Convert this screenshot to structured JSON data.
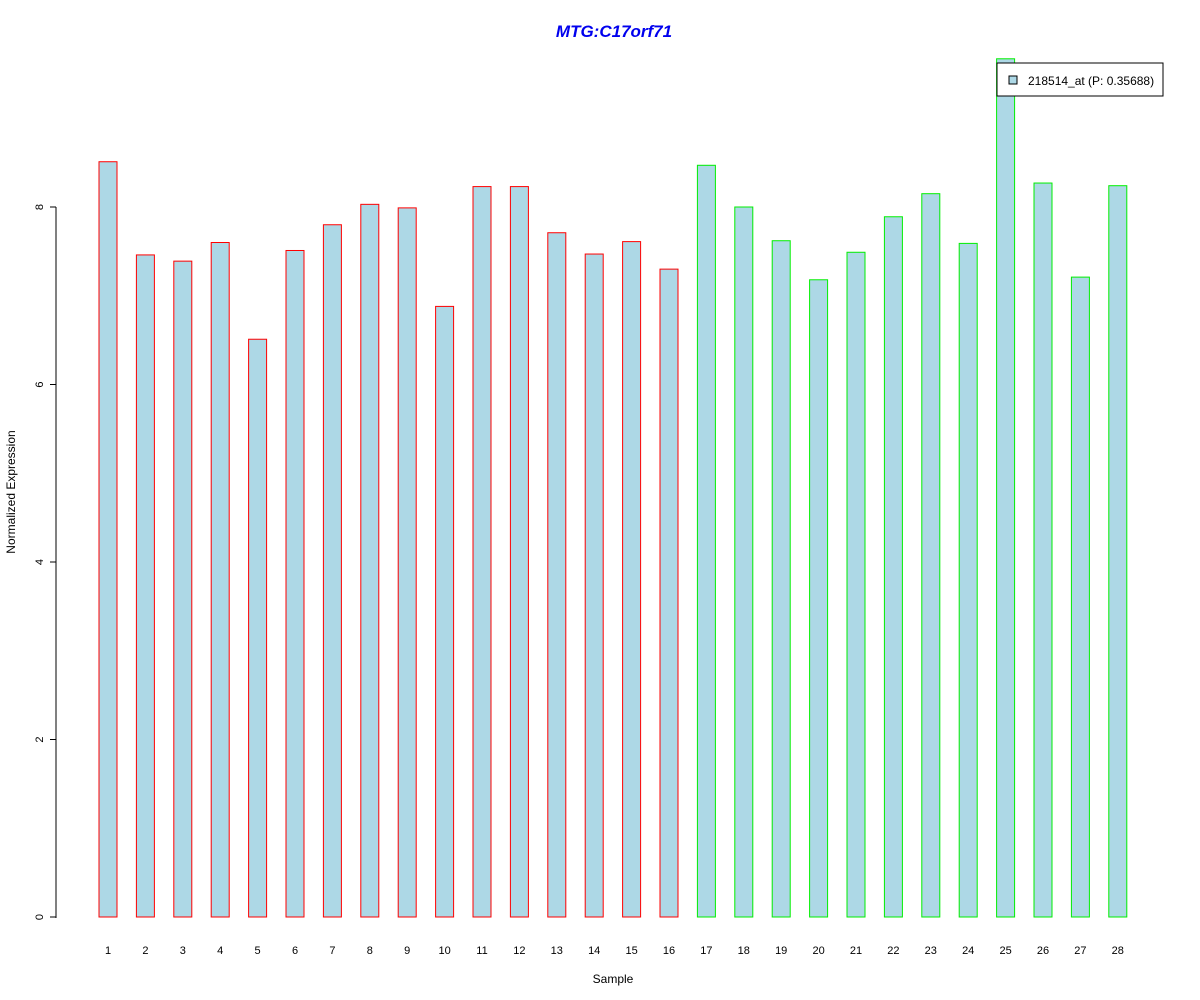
{
  "chart_data": {
    "type": "bar",
    "title": "MTG:C17orf71",
    "title_color": "#0000ee",
    "xlabel": "Sample",
    "ylabel": "Normalized Expression",
    "categories": [
      "1",
      "2",
      "3",
      "4",
      "5",
      "6",
      "7",
      "8",
      "9",
      "10",
      "11",
      "12",
      "13",
      "14",
      "15",
      "16",
      "17",
      "18",
      "19",
      "20",
      "21",
      "22",
      "23",
      "24",
      "25",
      "26",
      "27",
      "28"
    ],
    "series": [
      {
        "name": "218514_at (P: 0.35688)",
        "fill_color": "#add8e6",
        "values": [
          8.51,
          7.46,
          7.39,
          7.6,
          6.51,
          7.51,
          7.8,
          8.03,
          7.99,
          6.88,
          8.23,
          8.23,
          7.71,
          7.47,
          7.61,
          7.3,
          8.47,
          8.0,
          7.62,
          7.18,
          7.49,
          7.89,
          8.15,
          7.59,
          9.67,
          8.27,
          7.21,
          8.24
        ]
      }
    ],
    "bar_border_colors": [
      "#ff0000",
      "#ff0000",
      "#ff0000",
      "#ff0000",
      "#ff0000",
      "#ff0000",
      "#ff0000",
      "#ff0000",
      "#ff0000",
      "#ff0000",
      "#ff0000",
      "#ff0000",
      "#ff0000",
      "#ff0000",
      "#ff0000",
      "#ff0000",
      "#00ee00",
      "#00ee00",
      "#00ee00",
      "#00ee00",
      "#00ee00",
      "#00ee00",
      "#00ee00",
      "#00ee00",
      "#00ee00",
      "#00ee00",
      "#00ee00",
      "#00ee00"
    ],
    "y_ticks": [
      "0",
      "2",
      "4",
      "6",
      "8"
    ],
    "ylim": [
      0,
      9.67
    ],
    "legend_position": "top-right",
    "grid": false
  }
}
